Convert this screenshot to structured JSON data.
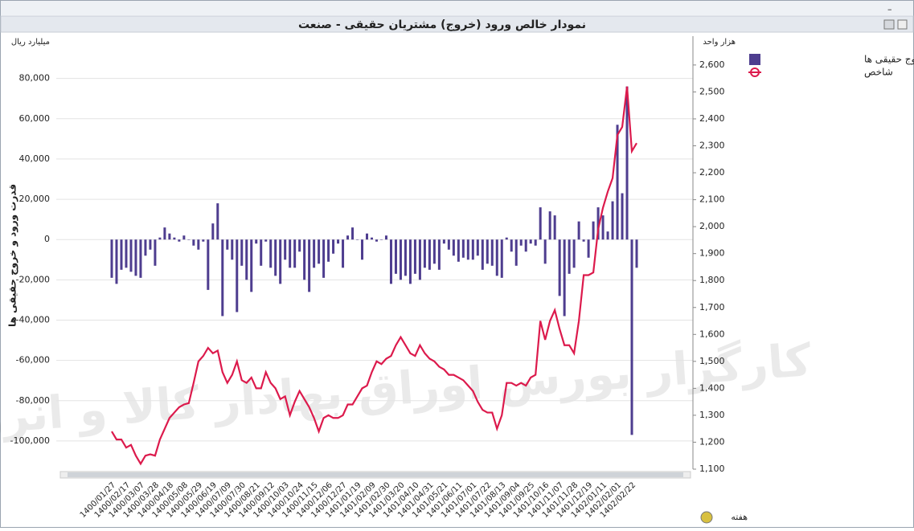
{
  "chart_data": {
    "type": "bar-line",
    "title": "نمودار خالص ورود (خروج) مشتریان حقیقی - صنعت",
    "y_unit": "میلیارد ریال",
    "y2_unit": "هزار واحد",
    "y_title": "قدرت ورود و خروج حقیقی ها",
    "x_title": "هفته",
    "watermark": "کارگزار بورس اوراق بهادار کالا و انرژی",
    "categories": [
      "1400/01/27",
      null,
      null,
      "1400/02/17",
      null,
      null,
      "1400/03/07",
      null,
      null,
      "1400/03/28",
      null,
      null,
      "1400/04/18",
      null,
      null,
      "1400/05/08",
      null,
      null,
      "1400/05/29",
      null,
      null,
      "1400/06/19",
      null,
      null,
      "1400/07/09",
      null,
      null,
      "1400/07/30",
      null,
      null,
      "1400/08/21",
      null,
      null,
      "1400/09/12",
      null,
      null,
      "1400/10/03",
      null,
      null,
      "1400/10/24",
      null,
      null,
      "1400/11/15",
      null,
      null,
      "1400/12/06",
      null,
      null,
      "1400/12/27",
      null,
      null,
      "1401/01/19",
      null,
      null,
      "1401/02/09",
      null,
      null,
      "1401/02/30",
      null,
      null,
      "1401/03/20",
      null,
      null,
      "1401/04/10",
      null,
      null,
      "1401/04/31",
      null,
      null,
      "1401/05/21",
      null,
      null,
      "1401/06/11",
      null,
      null,
      "1401/07/01",
      null,
      null,
      "1401/07/22",
      null,
      null,
      "1401/08/13",
      null,
      null,
      "1401/09/04",
      null,
      null,
      "1401/09/25",
      null,
      null,
      "1401/10/16",
      null,
      null,
      "1401/11/07",
      null,
      null,
      "1401/11/28",
      null,
      null,
      "1401/12/19",
      null,
      null,
      "1402/01/11",
      null,
      null,
      "1402/02/01",
      null,
      null,
      "1402/02/22",
      null
    ],
    "series": [
      {
        "name": "قدرت ورود و خروج حقیقی ها",
        "type": "bar",
        "axis": "y",
        "color": "#4e3d8f",
        "values": [
          -19000,
          -22000,
          -15000,
          -14000,
          -16000,
          -18000,
          -19000,
          -8000,
          -5000,
          -13000,
          1000,
          6000,
          3000,
          1000,
          -1000,
          2000,
          0,
          -3000,
          -5000,
          -1000,
          -25000,
          8000,
          18000,
          -38000,
          -5000,
          -10000,
          -36000,
          -13000,
          -20000,
          -26000,
          -2000,
          -13000,
          -1000,
          -14000,
          -18000,
          -22000,
          -10000,
          -14000,
          -14000,
          -6000,
          -20000,
          -26000,
          -14000,
          -12000,
          -19000,
          -11000,
          -7000,
          -2000,
          -14000,
          2000,
          6000,
          0,
          -10000,
          3000,
          1000,
          -1000,
          0,
          2000,
          -22000,
          -17000,
          -20000,
          -18000,
          -22000,
          -17000,
          -20000,
          -14000,
          -15000,
          -12000,
          -15000,
          -2000,
          -5000,
          -8000,
          -11000,
          -9000,
          -10000,
          -10000,
          -8000,
          -15000,
          -12000,
          -13000,
          -18000,
          -19000,
          1000,
          -6000,
          -13000,
          -3000,
          -6000,
          -2000,
          -3000,
          16000,
          -12000,
          14000,
          12000,
          -28000,
          -38000,
          -17000,
          -14000,
          9000,
          -1000,
          -9000,
          9000,
          16000,
          12000,
          4000,
          19000,
          57000,
          23000,
          76000,
          -97000,
          -14000
        ]
      },
      {
        "name": "شاخص",
        "type": "line",
        "axis": "y2",
        "color": "#dc1a4c",
        "values": [
          1240,
          1210,
          1210,
          1180,
          1190,
          1150,
          1120,
          1150,
          1155,
          1150,
          1210,
          1250,
          1290,
          1310,
          1330,
          1340,
          1345,
          1420,
          1500,
          1520,
          1550,
          1530,
          1540,
          1460,
          1420,
          1450,
          1500,
          1430,
          1420,
          1440,
          1400,
          1400,
          1460,
          1420,
          1400,
          1360,
          1370,
          1300,
          1350,
          1390,
          1360,
          1330,
          1290,
          1240,
          1290,
          1300,
          1290,
          1290,
          1300,
          1340,
          1340,
          1370,
          1400,
          1410,
          1460,
          1500,
          1490,
          1510,
          1520,
          1560,
          1590,
          1560,
          1530,
          1520,
          1560,
          1530,
          1510,
          1500,
          1480,
          1470,
          1450,
          1450,
          1440,
          1430,
          1410,
          1390,
          1350,
          1320,
          1310,
          1310,
          1250,
          1300,
          1420,
          1420,
          1410,
          1420,
          1410,
          1440,
          1450,
          1650,
          1580,
          1650,
          1690,
          1620,
          1560,
          1560,
          1530,
          1650,
          1820,
          1820,
          1830,
          1990,
          2070,
          2130,
          2180,
          2340,
          2370,
          2520,
          2280,
          2310
        ]
      }
    ],
    "ylim": [
      -114000,
      101000
    ],
    "yticks": [
      {
        "value": -100000,
        "label": "-100,000"
      },
      {
        "value": -80000,
        "label": "-80,000"
      },
      {
        "value": -60000,
        "label": "-60,000"
      },
      {
        "value": -40000,
        "label": "-40,000"
      },
      {
        "value": -20000,
        "label": "-20,000"
      },
      0,
      {
        "value": 20000,
        "label": "20,000"
      },
      {
        "value": 40000,
        "label": "40,000"
      },
      {
        "value": 60000,
        "label": "60,000"
      },
      {
        "value": 80000,
        "label": "80,000"
      }
    ],
    "y2lim": [
      1100,
      2707
    ],
    "y2ticks": [
      {
        "value": 1100,
        "label": "1,100"
      },
      {
        "value": 1200,
        "label": "1,200"
      },
      {
        "value": 1300,
        "label": "1,300"
      },
      {
        "value": 1400,
        "label": "1,400"
      },
      {
        "value": 1500,
        "label": "1,500"
      },
      {
        "value": 1600,
        "label": "1,600"
      },
      {
        "value": 1700,
        "label": "1,700"
      },
      {
        "value": 1800,
        "label": "1,800"
      },
      {
        "value": 1900,
        "label": "1,900"
      },
      {
        "value": 2000,
        "label": "2,000"
      },
      {
        "value": 2100,
        "label": "2,100"
      },
      {
        "value": 2200,
        "label": "2,200"
      },
      {
        "value": 2300,
        "label": "2,300"
      },
      {
        "value": 2400,
        "label": "2,400"
      },
      {
        "value": 2500,
        "label": "2,500"
      },
      {
        "value": 2600,
        "label": "2,600"
      }
    ],
    "grid": true,
    "legend": "top-right"
  }
}
